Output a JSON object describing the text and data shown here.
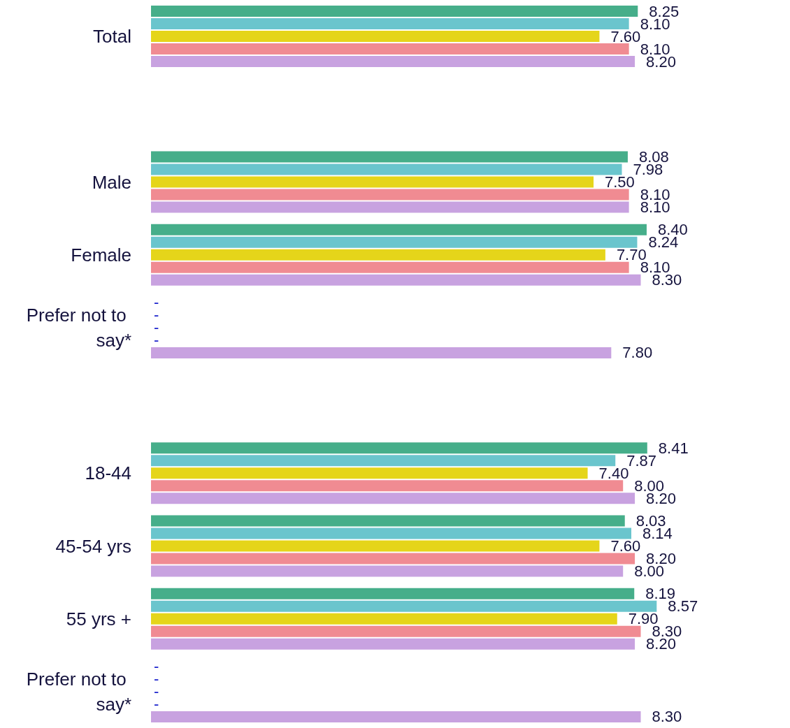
{
  "chart_data": {
    "type": "bar",
    "orientation": "horizontal",
    "categories": [
      "Total",
      null,
      "Male",
      "Female",
      "Prefer not to say*",
      null,
      "18-44",
      "45-54 yrs",
      "55 yrs +",
      "Prefer not to say*"
    ],
    "tick_labels": "y",
    "series": [
      {
        "color": "#46ae8a",
        "values": [
          8.25,
          null,
          8.08,
          8.4,
          null,
          null,
          8.41,
          8.03,
          8.19,
          null
        ],
        "value_labels": [
          "8.25",
          null,
          "8.08",
          "8.40",
          "-",
          null,
          "8.41",
          "8.03",
          "8.19",
          "-"
        ]
      },
      {
        "color": "#6ac5cd",
        "values": [
          8.1,
          null,
          7.98,
          8.24,
          null,
          null,
          7.87,
          8.14,
          8.57,
          null
        ],
        "value_labels": [
          "8.10",
          null,
          "7.98",
          "8.24",
          "-",
          null,
          "7.87",
          "8.14",
          "8.57",
          "-"
        ]
      },
      {
        "color": "#e5d51a",
        "values": [
          7.6,
          null,
          7.5,
          7.7,
          null,
          null,
          7.4,
          7.6,
          7.9,
          null
        ],
        "value_labels": [
          "7.60",
          null,
          "7.50",
          "7.70",
          "-",
          null,
          "7.40",
          "7.60",
          "7.90",
          "-"
        ]
      },
      {
        "color": "#f08b92",
        "values": [
          8.1,
          null,
          8.1,
          8.1,
          null,
          null,
          8.0,
          8.2,
          8.3,
          null
        ],
        "value_labels": [
          "8.10",
          null,
          "8.10",
          "8.10",
          "-",
          null,
          "8.00",
          "8.20",
          "8.30",
          "-"
        ]
      },
      {
        "color": "#c8a2e0",
        "values": [
          8.2,
          null,
          8.1,
          8.3,
          7.8,
          null,
          8.2,
          8.0,
          8.2,
          8.3
        ],
        "value_labels": [
          "8.20",
          null,
          "8.10",
          "8.30",
          "7.80",
          null,
          "8.20",
          "8.00",
          "8.20",
          "8.30"
        ]
      }
    ]
  }
}
